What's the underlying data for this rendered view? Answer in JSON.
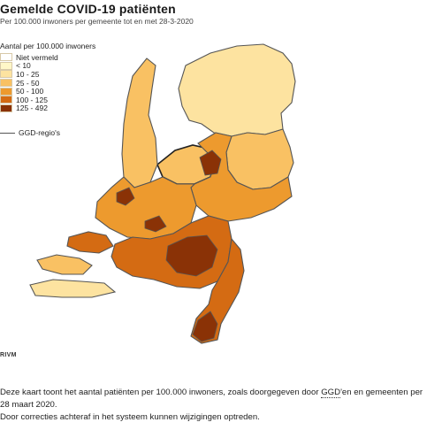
{
  "header": {
    "title": "Gemelde COVID-19 patiënten",
    "subtitle": "Per 100.000 inwoners per gemeente tot en met 28-3-2020"
  },
  "legend": {
    "heading": "Aantal per 100.000 inwoners",
    "items": [
      {
        "label": "Niet vermeld",
        "color": "#ffffff"
      },
      {
        "label": "< 10",
        "color": "#fff7c8"
      },
      {
        "label": "10 - 25",
        "color": "#fde3a0"
      },
      {
        "label": "25 - 50",
        "color": "#f9c163"
      },
      {
        "label": "50 - 100",
        "color": "#ed9a2e"
      },
      {
        "label": "100 - 125",
        "color": "#d46b13"
      },
      {
        "label": "125 - 492",
        "color": "#8a3206"
      }
    ],
    "region_line_label": "GGD-regio's"
  },
  "credit": "RIVM",
  "description": {
    "line1_pre": "Deze kaart toont het aantal patiënten per 100.000 inwoners, zoals doorgegeven door ",
    "line1_abbr": "GGD",
    "line1_post": "'en en gemeenten per",
    "line2": "28 maart 2020.",
    "line3": "Door correcties achteraf in het systeem kunnen wijzigingen optreden."
  }
}
